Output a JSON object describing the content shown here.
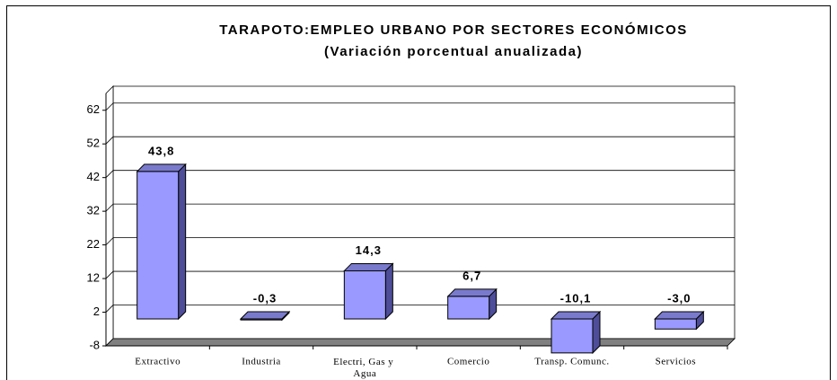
{
  "chart_data": {
    "type": "bar3d",
    "title": "TARAPOTO:EMPLEO URBANO POR SECTORES ECONÓMICOS",
    "subtitle": "(Variación porcentual anualizada)",
    "categories": [
      "Extractivo",
      "Industria",
      "Electri, Gas y Agua",
      "Comercio",
      "Transp. Comunc.",
      "Servicios"
    ],
    "values": [
      43.8,
      -0.3,
      14.3,
      6.7,
      -10.1,
      -3.0
    ],
    "value_labels": [
      "43,8",
      "-0,3",
      "14,3",
      "6,7",
      "-10,1",
      "-3,0"
    ],
    "color": "#9999ff",
    "ylim": [
      -8,
      67
    ],
    "yticks": [
      -8,
      2,
      12,
      22,
      32,
      42,
      52,
      62
    ],
    "grid": true
  }
}
